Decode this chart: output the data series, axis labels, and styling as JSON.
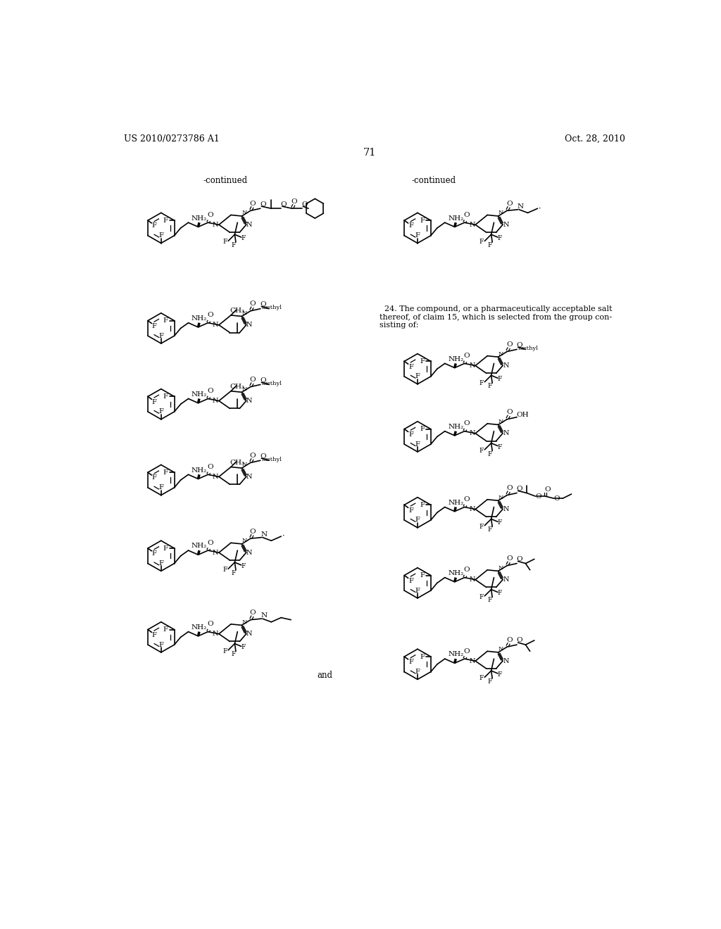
{
  "patent_number": "US 2010/0273786 A1",
  "date": "Oct. 28, 2010",
  "page_number": "71",
  "bg": "#ffffff",
  "continued_left": "-continued",
  "continued_right": "-continued",
  "claim24_lines": [
    "  24. The compound, or a pharmaceutically acceptable salt",
    "thereof, of claim ―15’, which is selected from the group con-",
    "sisting of:"
  ],
  "claim24_lines_clean": [
    "  24. The compound, or a pharmaceutically acceptable salt",
    "thereof, of claim 15, which is selected from the group con-",
    "sisting of:"
  ],
  "and_text": "and"
}
